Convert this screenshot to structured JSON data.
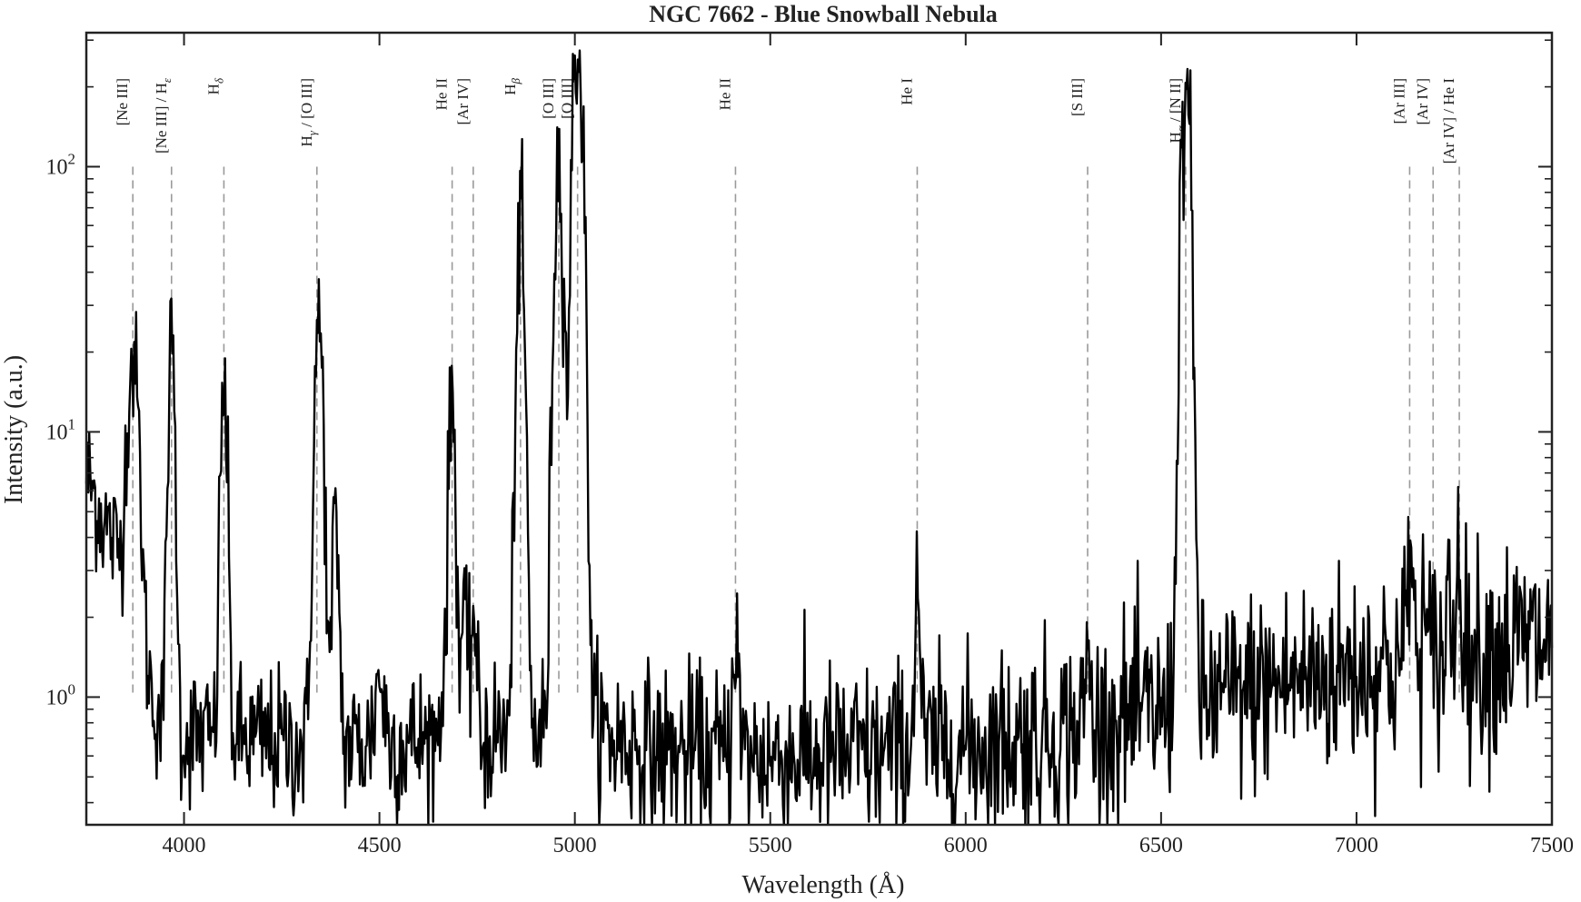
{
  "chart_data": {
    "type": "line",
    "title": "NGC 7662 - Blue Snowball Nebula",
    "xlabel": "Wavelength (Å)",
    "ylabel": "Intensity (a.u.)",
    "xlim": [
      3750,
      7500
    ],
    "ylim": [
      0.33,
      320
    ],
    "yscale": "log",
    "x_ticks": [
      4000,
      4500,
      5000,
      5500,
      6000,
      6500,
      7000,
      7500
    ],
    "y_ticks": [
      {
        "value": 1,
        "base": "10",
        "exp": "0"
      },
      {
        "value": 10,
        "base": "10",
        "exp": "1"
      },
      {
        "value": 100,
        "base": "10",
        "exp": "2"
      }
    ],
    "grid": false,
    "continuum_profile": [
      [
        3750,
        7.0
      ],
      [
        3790,
        4.8
      ],
      [
        3830,
        3.6
      ],
      [
        3880,
        2.0
      ],
      [
        3920,
        1.0
      ],
      [
        3950,
        0.75
      ],
      [
        4000,
        0.72
      ],
      [
        4100,
        0.7
      ],
      [
        4200,
        0.68
      ],
      [
        4300,
        0.66
      ],
      [
        4400,
        0.66
      ],
      [
        4500,
        0.67
      ],
      [
        4600,
        0.68
      ],
      [
        4700,
        0.7
      ],
      [
        4800,
        0.72
      ],
      [
        4900,
        0.75
      ],
      [
        5050,
        0.74
      ],
      [
        5200,
        0.62
      ],
      [
        5400,
        0.6
      ],
      [
        5600,
        0.6
      ],
      [
        5800,
        0.61
      ],
      [
        6000,
        0.65
      ],
      [
        6200,
        0.72
      ],
      [
        6400,
        0.82
      ],
      [
        6600,
        0.95
      ],
      [
        6800,
        1.12
      ],
      [
        7000,
        1.28
      ],
      [
        7200,
        1.42
      ],
      [
        7400,
        1.55
      ],
      [
        7500,
        1.6
      ]
    ],
    "emission_lines": [
      {
        "x": 3869,
        "peak": 19.0,
        "width": 12
      },
      {
        "x": 3968,
        "peak": 20.5,
        "width": 7
      },
      {
        "x": 4102,
        "peak": 14.5,
        "width": 7
      },
      {
        "x": 4345,
        "peak": 25.0,
        "width": 9
      },
      {
        "x": 4388,
        "peak": 4.5,
        "width": 7
      },
      {
        "x": 4500,
        "peak": 1.2,
        "width": 10
      },
      {
        "x": 4665,
        "peak": 1.2,
        "width": 8
      },
      {
        "x": 4686,
        "peak": 13.5,
        "width": 7
      },
      {
        "x": 4715,
        "peak": 2.2,
        "width": 6
      },
      {
        "x": 4740,
        "peak": 2.2,
        "width": 6
      },
      {
        "x": 4861,
        "peak": 54.0,
        "width": 8
      },
      {
        "x": 4959,
        "peak": 103.0,
        "width": 9
      },
      {
        "x": 5007,
        "peak": 300.0,
        "width": 10
      },
      {
        "x": 5411,
        "peak": 1.9,
        "width": 6
      },
      {
        "x": 5876,
        "peak": 2.7,
        "width": 6
      },
      {
        "x": 6312,
        "peak": 1.5,
        "width": 5
      },
      {
        "x": 6563,
        "peak": 200.0,
        "width": 9
      },
      {
        "x": 6584,
        "peak": 3.0,
        "width": 6
      },
      {
        "x": 7136,
        "peak": 3.8,
        "width": 6
      },
      {
        "x": 7170,
        "peak": 2.2,
        "width": 4
      },
      {
        "x": 7237,
        "peak": 2.6,
        "width": 5
      },
      {
        "x": 7263,
        "peak": 4.2,
        "width": 5
      }
    ],
    "noise_amplitude": 0.13,
    "line_markers": [
      {
        "x": 3869,
        "label": "[Ne III]"
      },
      {
        "x": 3968,
        "label": "[Ne III] / H",
        "sub": "ε"
      },
      {
        "x": 4102,
        "label": "H",
        "sub": "δ"
      },
      {
        "x": 4340,
        "label": "H",
        "sub": "γ",
        "after": " / [O III]"
      },
      {
        "x": 4686,
        "label": "He II"
      },
      {
        "x": 4740,
        "label": "[Ar IV]"
      },
      {
        "x": 4861,
        "label": "H",
        "sub": "β"
      },
      {
        "x": 4959,
        "label": "[O III]"
      },
      {
        "x": 5007,
        "label": "[O III]"
      },
      {
        "x": 5411,
        "label": "He II"
      },
      {
        "x": 5876,
        "label": "He I"
      },
      {
        "x": 6312,
        "label": "[S III]"
      },
      {
        "x": 6563,
        "label": "H",
        "sub": "α",
        "after": " / [N II]"
      },
      {
        "x": 7136,
        "label": "[Ar III]"
      },
      {
        "x": 7196,
        "label": "[Ar IV]"
      },
      {
        "x": 7263,
        "label": "[Ar IV] / He I"
      }
    ]
  }
}
